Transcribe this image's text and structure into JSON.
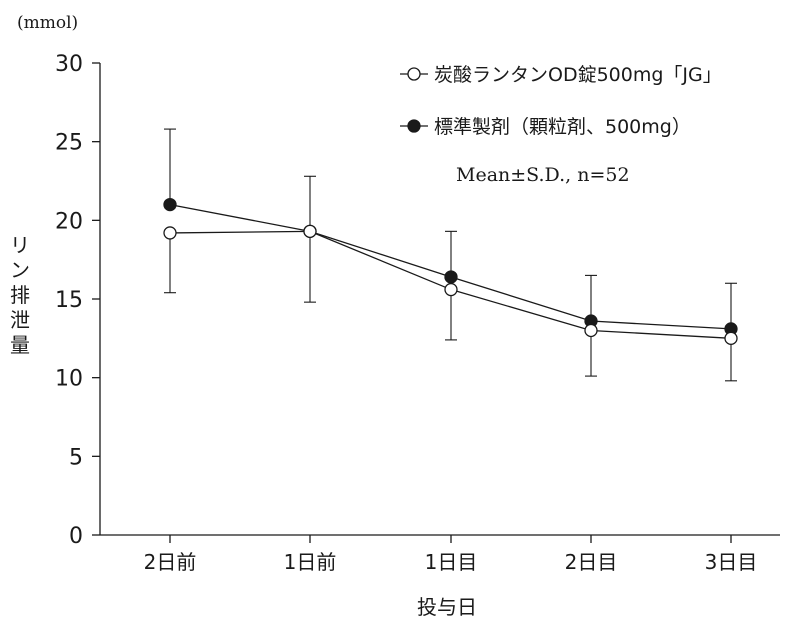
{
  "chart_data": {
    "type": "line",
    "unit_label": "(mmol)",
    "ylabel": "リン排泄量",
    "xlabel": "投与日",
    "categories": [
      "2日前",
      "1日前",
      "1日目",
      "2日目",
      "3日目"
    ],
    "ylim": [
      0,
      30
    ],
    "yticks": [
      0,
      5,
      10,
      15,
      20,
      25,
      30
    ],
    "grid": false,
    "legend_position": "top-right",
    "series": [
      {
        "name": "炭酸ランタンOD錠500mg「JG」",
        "marker": "open-circle",
        "values": [
          19.2,
          19.3,
          15.6,
          13.0,
          12.5
        ],
        "sd_upper": [
          null,
          22.8,
          null,
          16.5,
          16.0
        ],
        "sd_lower": [
          15.4,
          14.8,
          12.4,
          10.1,
          9.8
        ]
      },
      {
        "name": "標準製剤（顆粒剤、500mg）",
        "marker": "filled-circle",
        "values": [
          21.0,
          19.3,
          16.4,
          13.6,
          13.1
        ],
        "sd_upper": [
          25.8,
          null,
          19.3,
          null,
          null
        ],
        "sd_lower": [
          null,
          null,
          null,
          null,
          null
        ]
      }
    ],
    "annotation": "Mean±S.D.,  n=52",
    "colors": {
      "line": "#1a1a1a",
      "background": "#ffffff"
    }
  }
}
